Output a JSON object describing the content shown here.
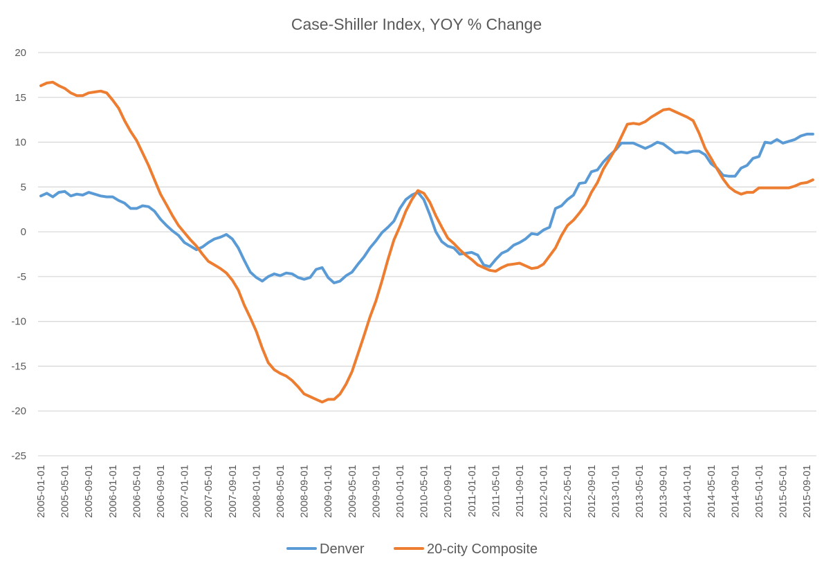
{
  "chart_data": {
    "type": "line",
    "title": "Case-Shiller Index, YOY % Change",
    "xlabel": "",
    "ylabel": "",
    "ylim": [
      -25,
      20
    ],
    "yticks": [
      20,
      15,
      10,
      5,
      0,
      -5,
      -10,
      -15,
      -20,
      -25
    ],
    "grid": true,
    "legend_position": "bottom",
    "xticks": [
      "2005-01-01",
      "2005-05-01",
      "2005-09-01",
      "2006-01-01",
      "2006-05-01",
      "2006-09-01",
      "2007-01-01",
      "2007-05-01",
      "2007-09-01",
      "2008-01-01",
      "2008-05-01",
      "2008-09-01",
      "2009-01-01",
      "2009-05-01",
      "2009-09-01",
      "2010-01-01",
      "2010-05-01",
      "2010-09-01",
      "2011-01-01",
      "2011-05-01",
      "2011-09-01",
      "2012-01-01",
      "2012-05-01",
      "2012-09-01",
      "2013-01-01",
      "2013-05-01",
      "2013-09-01",
      "2014-01-01",
      "2014-05-01",
      "2014-09-01",
      "2015-01-01",
      "2015-05-01",
      "2015-09-01"
    ],
    "x_start": "2005-01-01",
    "x_end": "2015-10-01",
    "x_frequency": "monthly",
    "series": [
      {
        "name": "Denver",
        "color": "#5B9BD5",
        "values": [
          4.0,
          4.3,
          3.9,
          4.4,
          4.5,
          4.0,
          4.2,
          4.1,
          4.4,
          4.2,
          4.0,
          3.9,
          3.9,
          3.5,
          3.2,
          2.6,
          2.6,
          2.9,
          2.8,
          2.3,
          1.4,
          0.7,
          0.1,
          -0.4,
          -1.2,
          -1.6,
          -2.0,
          -1.7,
          -1.2,
          -0.8,
          -0.6,
          -0.3,
          -0.8,
          -1.8,
          -3.2,
          -4.5,
          -5.1,
          -5.5,
          -5.0,
          -4.7,
          -4.9,
          -4.6,
          -4.7,
          -5.1,
          -5.3,
          -5.1,
          -4.2,
          -4.0,
          -5.1,
          -5.7,
          -5.5,
          -4.9,
          -4.5,
          -3.6,
          -2.8,
          -1.8,
          -1.0,
          -0.1,
          0.5,
          1.2,
          2.6,
          3.6,
          4.1,
          4.4,
          3.6,
          1.9,
          0.0,
          -1.1,
          -1.6,
          -1.8,
          -2.5,
          -2.4,
          -2.3,
          -2.6,
          -3.7,
          -3.9,
          -3.1,
          -2.4,
          -2.1,
          -1.5,
          -1.2,
          -0.8,
          -0.2,
          -0.3,
          0.2,
          0.5,
          2.6,
          2.9,
          3.6,
          4.1,
          5.4,
          5.5,
          6.7,
          6.9,
          7.8,
          8.5,
          9.1,
          9.9,
          9.9,
          9.9,
          9.6,
          9.3,
          9.6,
          10.0,
          9.8,
          9.3,
          8.8,
          8.9,
          8.8,
          9.0,
          9.0,
          8.6,
          7.6,
          7.1,
          6.3,
          6.2,
          6.2,
          7.1,
          7.4,
          8.2,
          8.4,
          10.0,
          9.9,
          10.3,
          9.9,
          10.1,
          10.3,
          10.7,
          10.9,
          10.9
        ]
      },
      {
        "name": "20-city Composite",
        "color": "#ED7D31",
        "values": [
          16.3,
          16.6,
          16.7,
          16.3,
          16.0,
          15.5,
          15.2,
          15.2,
          15.5,
          15.6,
          15.7,
          15.5,
          14.7,
          13.8,
          12.4,
          11.2,
          10.2,
          8.8,
          7.4,
          5.8,
          4.2,
          3.0,
          1.8,
          0.7,
          -0.1,
          -0.9,
          -1.6,
          -2.5,
          -3.3,
          -3.7,
          -4.1,
          -4.6,
          -5.4,
          -6.5,
          -8.2,
          -9.6,
          -11.1,
          -13.0,
          -14.6,
          -15.4,
          -15.8,
          -16.1,
          -16.6,
          -17.3,
          -18.1,
          -18.4,
          -18.7,
          -19.0,
          -18.7,
          -18.7,
          -18.1,
          -17.0,
          -15.6,
          -13.6,
          -11.6,
          -9.5,
          -7.7,
          -5.5,
          -3.1,
          -0.9,
          0.6,
          2.3,
          3.6,
          4.6,
          4.3,
          3.3,
          1.8,
          0.5,
          -0.7,
          -1.3,
          -2.0,
          -2.6,
          -3.1,
          -3.7,
          -4.0,
          -4.3,
          -4.4,
          -4.0,
          -3.7,
          -3.6,
          -3.5,
          -3.8,
          -4.1,
          -4.0,
          -3.6,
          -2.7,
          -1.8,
          -0.4,
          0.7,
          1.3,
          2.1,
          3.0,
          4.4,
          5.5,
          7.0,
          8.1,
          9.2,
          10.6,
          12.0,
          12.1,
          12.0,
          12.3,
          12.8,
          13.2,
          13.6,
          13.7,
          13.4,
          13.1,
          12.8,
          12.4,
          11.0,
          9.3,
          8.2,
          7.0,
          5.9,
          5.0,
          4.5,
          4.2,
          4.4,
          4.4,
          4.9,
          4.9,
          4.9,
          4.9,
          4.9,
          4.9,
          5.1,
          5.4,
          5.5,
          5.8
        ]
      }
    ]
  }
}
